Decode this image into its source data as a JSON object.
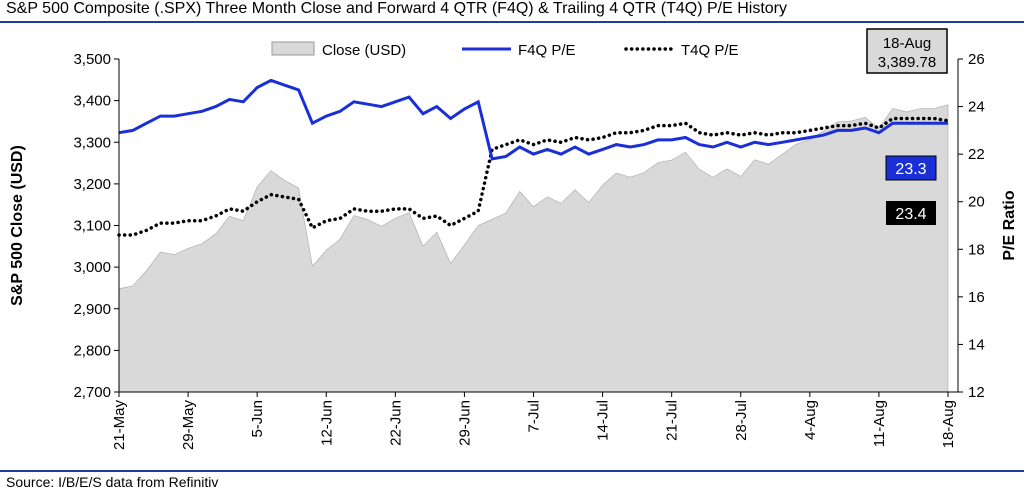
{
  "title": "S&P 500 Composite (.SPX) Three Month Close and Forward 4 QTR (F4Q) & Trailing 4 QTR (T4Q) P/E History",
  "source": "Source: I/B/E/S data from Refinitiv",
  "chart_data": {
    "type": "area+line",
    "ylabel_left": "S&P 500 Close (USD)",
    "ylabel_right": "P/E Ratio",
    "ylim_left": [
      2700,
      3500
    ],
    "ylim_right": [
      12,
      26
    ],
    "yticks_left": [
      2700,
      2800,
      2900,
      3000,
      3100,
      3200,
      3300,
      3400,
      3500
    ],
    "yticks_left_labels": [
      "2,700",
      "2,800",
      "2,900",
      "3,000",
      "3,100",
      "3,200",
      "3,300",
      "3,400",
      "3,500"
    ],
    "yticks_right": [
      12,
      14,
      16,
      18,
      20,
      22,
      24,
      26
    ],
    "xticks": [
      "21-May",
      "29-May",
      "5-Jun",
      "12-Jun",
      "22-Jun",
      "29-Jun",
      "7-Jul",
      "14-Jul",
      "21-Jul",
      "28-Jul",
      "4-Aug",
      "11-Aug",
      "18-Aug"
    ],
    "legend": {
      "position": "top",
      "entries": [
        {
          "label": "Close (USD)",
          "color": "#d9d9d9"
        },
        {
          "label": "F4Q P/E",
          "color": "#1a2fd6"
        },
        {
          "label": "T4Q P/E",
          "color": "#000000"
        }
      ]
    },
    "series": [
      {
        "name": "Close (USD)",
        "kind": "area",
        "axis": "left",
        "color": "#d9d9d9",
        "values": [
          2948,
          2955,
          2992,
          3036,
          3030,
          3045,
          3056,
          3080,
          3122,
          3112,
          3193,
          3232,
          3208,
          3190,
          3002,
          3041,
          3067,
          3124,
          3114,
          3098,
          3117,
          3131,
          3050,
          3084,
          3009,
          3053,
          3100,
          3115,
          3130,
          3182,
          3145,
          3169,
          3153,
          3186,
          3155,
          3197,
          3226,
          3216,
          3227,
          3251,
          3257,
          3276,
          3235,
          3216,
          3236,
          3218,
          3258,
          3247,
          3271,
          3295,
          3306,
          3327,
          3349,
          3351,
          3360,
          3334,
          3381,
          3373,
          3381,
          3381,
          3390
        ]
      },
      {
        "name": "F4Q P/E",
        "kind": "line",
        "axis": "right",
        "color": "#1a2fd6",
        "values": [
          22.9,
          23.0,
          23.3,
          23.6,
          23.6,
          23.7,
          23.8,
          24.0,
          24.3,
          24.2,
          24.8,
          25.1,
          24.9,
          24.7,
          23.3,
          23.6,
          23.8,
          24.2,
          24.1,
          24.0,
          24.2,
          24.4,
          23.7,
          24.0,
          23.5,
          23.9,
          24.2,
          21.8,
          21.9,
          22.3,
          22.0,
          22.2,
          22.0,
          22.3,
          22.0,
          22.2,
          22.4,
          22.3,
          22.4,
          22.6,
          22.6,
          22.7,
          22.4,
          22.3,
          22.5,
          22.3,
          22.5,
          22.4,
          22.5,
          22.6,
          22.7,
          22.8,
          23.0,
          23.0,
          23.1,
          22.9,
          23.3,
          23.3,
          23.3,
          23.3,
          23.3
        ]
      },
      {
        "name": "T4Q P/E",
        "kind": "line",
        "axis": "right",
        "color": "#000000",
        "values": [
          18.6,
          18.6,
          18.8,
          19.1,
          19.1,
          19.2,
          19.2,
          19.4,
          19.7,
          19.6,
          20.0,
          20.3,
          20.2,
          20.1,
          18.9,
          19.2,
          19.3,
          19.7,
          19.6,
          19.6,
          19.7,
          19.7,
          19.3,
          19.4,
          19.0,
          19.3,
          19.6,
          22.2,
          22.4,
          22.6,
          22.4,
          22.6,
          22.5,
          22.7,
          22.6,
          22.7,
          22.9,
          22.9,
          23.0,
          23.2,
          23.2,
          23.3,
          22.9,
          22.8,
          22.9,
          22.8,
          22.9,
          22.8,
          22.9,
          22.9,
          23.0,
          23.1,
          23.2,
          23.2,
          23.3,
          23.1,
          23.5,
          23.5,
          23.5,
          23.5,
          23.4
        ]
      }
    ],
    "annotations": {
      "date_box": {
        "date": "18-Aug",
        "value": "3,389.78"
      },
      "f4q_last": "23.3",
      "t4q_last": "23.4"
    }
  }
}
